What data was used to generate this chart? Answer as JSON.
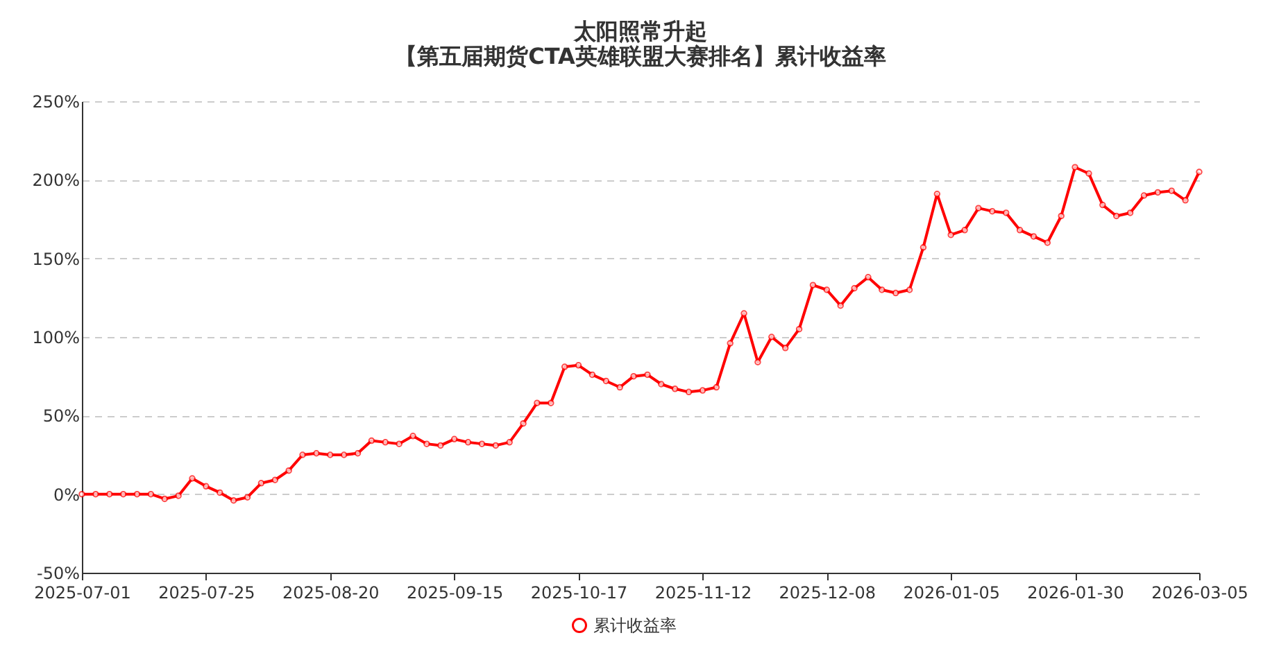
{
  "chart_data": {
    "type": "line",
    "title": "太阳照常升起",
    "subtitle": "【第五届期货CTA英雄联盟大赛排名】累计收益率",
    "categories": [
      "2025-07-01",
      null,
      null,
      null,
      null,
      null,
      null,
      null,
      null,
      "2025-07-25",
      null,
      null,
      null,
      null,
      null,
      null,
      null,
      null,
      "2025-08-20",
      null,
      null,
      null,
      null,
      null,
      null,
      null,
      null,
      "2025-09-15",
      null,
      null,
      null,
      null,
      null,
      null,
      null,
      null,
      "2025-10-17",
      null,
      null,
      null,
      null,
      null,
      null,
      null,
      null,
      "2025-11-12",
      null,
      null,
      null,
      null,
      null,
      null,
      null,
      null,
      "2025-12-08",
      null,
      null,
      null,
      null,
      null,
      null,
      null,
      null,
      "2026-01-05",
      null,
      null,
      null,
      null,
      null,
      null,
      null,
      null,
      "2026-01-30",
      null,
      null,
      null,
      null,
      null,
      null,
      null,
      null,
      "2026-03-05"
    ],
    "series": [
      {
        "name": "累计收益率",
        "color": "#ff0000",
        "values": [
          0,
          0,
          0,
          0,
          0,
          0,
          -3,
          -1,
          10,
          5,
          1,
          -4,
          -2,
          7,
          9,
          15,
          25,
          26,
          25,
          25,
          26,
          34,
          33,
          32,
          37,
          32,
          31,
          35,
          33,
          32,
          31,
          33,
          45,
          58,
          58,
          81,
          82,
          76,
          72,
          68,
          75,
          76,
          70,
          67,
          65,
          66,
          68,
          96,
          115,
          84,
          100,
          93,
          105,
          133,
          130,
          120,
          131,
          138,
          130,
          128,
          130,
          157,
          191,
          165,
          168,
          182,
          180,
          179,
          168,
          164,
          160,
          177,
          208,
          204,
          184,
          177,
          179,
          190,
          192,
          193,
          187,
          205
        ]
      }
    ],
    "ylim": [
      -50,
      250
    ],
    "yticks": [
      {
        "value": -50,
        "label": "-50%"
      },
      {
        "value": 0,
        "label": "0%"
      },
      {
        "value": 50,
        "label": "50%"
      },
      {
        "value": 100,
        "label": "100%"
      },
      {
        "value": 150,
        "label": "150%"
      },
      {
        "value": 200,
        "label": "200%"
      },
      {
        "value": 250,
        "label": "250%"
      }
    ],
    "grid": "y",
    "legend": "bottom",
    "marker": "circle",
    "line_style": "solid"
  }
}
